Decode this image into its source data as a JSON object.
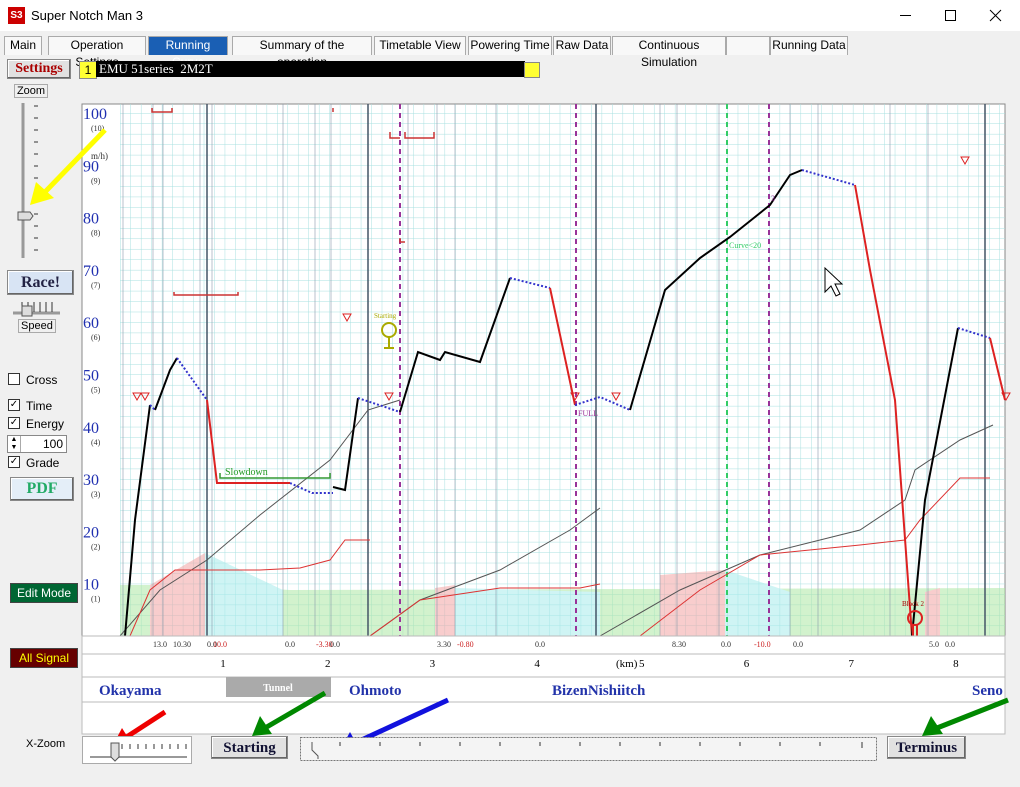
{
  "window": {
    "icon": "S3",
    "title": "Super Notch Man 3"
  },
  "tabs": [
    "Main",
    "Operation Settings",
    "Running Curve",
    "Summary of the operation",
    "Timetable View",
    "Powering Time",
    "Raw Data",
    "Continuous Simulation",
    "Running Data"
  ],
  "train": {
    "number": "1",
    "name": "EMU 51series  2M2T"
  },
  "left_panel": {
    "settings": "Settings",
    "zoom": "Zoom",
    "race": "Race!",
    "speed": "Speed",
    "cross": "Cross",
    "time": "Time",
    "energy": "Energy",
    "energy_value": "100",
    "grade": "Grade",
    "pdf": "PDF",
    "edit_mode": "Edit Mode",
    "all_signal": "All Signal"
  },
  "chart": {
    "speed_unit": "m/h)",
    "speed_ticks": [
      {
        "label": "100",
        "sub": "(10)"
      },
      {
        "label": "90",
        "sub": "(9)"
      },
      {
        "label": "80",
        "sub": "(8)"
      },
      {
        "label": "70",
        "sub": "(7)"
      },
      {
        "label": "60",
        "sub": "(6)"
      },
      {
        "label": "50",
        "sub": "(5)"
      },
      {
        "label": "40",
        "sub": "(4)"
      },
      {
        "label": "30",
        "sub": "(3)"
      },
      {
        "label": "20",
        "sub": "(2)"
      },
      {
        "label": "10",
        "sub": "(1)"
      }
    ],
    "km_ticks": [
      "1",
      "2",
      "3",
      "4",
      "5",
      "6",
      "7",
      "8"
    ],
    "km_unit": "(km)",
    "grade_labels": [
      "13.0",
      "10.30",
      "0.0",
      "10.0",
      "0.0",
      "-3.30",
      "0.0",
      "3.30",
      "-0.80",
      "0.0",
      "8.30",
      "0.0",
      "-10.0",
      "0.0",
      "5.0",
      "0.0"
    ],
    "annotations": {
      "slowdown": "Slowdown",
      "starting": "Starting",
      "full": "FULL",
      "curve": "Curve<20",
      "block": "Block 2",
      "notch": "3"
    }
  },
  "stations": {
    "names": [
      "Okayama",
      "Ohmoto",
      "BizenNishiitch",
      "Seno"
    ],
    "tunnel": "Tunnel"
  },
  "bottom": {
    "x_zoom": "X-Zoom",
    "starting": "Starting",
    "terminus": "Terminus"
  }
}
